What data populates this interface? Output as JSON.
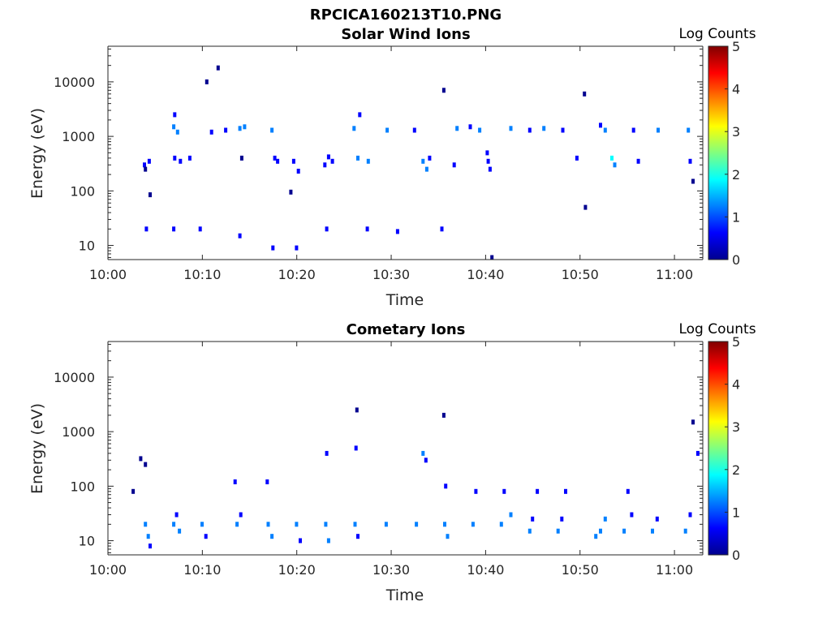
{
  "figure": {
    "title": "RPCICA160213T10.PNG"
  },
  "colormap": [
    "#00008f",
    "#0000ff",
    "#0080ff",
    "#00ffff",
    "#80ff80",
    "#ffff00",
    "#ff8000",
    "#ff0000",
    "#800000"
  ],
  "chart_data": [
    {
      "type": "heatmap",
      "title": "Solar Wind Ions",
      "xlabel": "Time",
      "ylabel": "Energy (eV)",
      "colorbar_label": "Log Counts",
      "colorbar_ticks": [
        "0",
        "1",
        "2",
        "3",
        "4",
        "5"
      ],
      "clim": [
        0,
        5
      ],
      "y_scale": "log",
      "ylim": [
        5.5,
        45000
      ],
      "xlim": [
        "10:00",
        "11:03"
      ],
      "x_ticks": [
        "10:00",
        "10:10",
        "10:20",
        "10:30",
        "10:40",
        "10:50",
        "11:00"
      ],
      "y_ticks": [
        "10",
        "100",
        "1000",
        "10000"
      ],
      "cells": [
        {
          "t": 3.7,
          "e": 300,
          "c": 0.4
        },
        {
          "t": 3.8,
          "e": 250,
          "c": 0.3
        },
        {
          "t": 4.2,
          "e": 350,
          "c": 0.5
        },
        {
          "t": 3.9,
          "e": 20,
          "c": 0.5
        },
        {
          "t": 4.3,
          "e": 85,
          "c": 0.2
        },
        {
          "t": 6.8,
          "e": 1500,
          "c": 1.1
        },
        {
          "t": 6.9,
          "e": 2500,
          "c": 0.8
        },
        {
          "t": 7.2,
          "e": 1200,
          "c": 1.0
        },
        {
          "t": 6.9,
          "e": 400,
          "c": 0.6
        },
        {
          "t": 7.5,
          "e": 350,
          "c": 0.5
        },
        {
          "t": 6.8,
          "e": 20,
          "c": 0.5
        },
        {
          "t": 8.5,
          "e": 400,
          "c": 0.4
        },
        {
          "t": 9.6,
          "e": 20,
          "c": 0.4
        },
        {
          "t": 10.3,
          "e": 10000,
          "c": 0.2
        },
        {
          "t": 11.5,
          "e": 18000,
          "c": 0.2
        },
        {
          "t": 10.8,
          "e": 1200,
          "c": 0.8
        },
        {
          "t": 12.3,
          "e": 1300,
          "c": 0.9
        },
        {
          "t": 13.8,
          "e": 1400,
          "c": 1.2
        },
        {
          "t": 14.3,
          "e": 1500,
          "c": 1.0
        },
        {
          "t": 13.8,
          "e": 15,
          "c": 0.4
        },
        {
          "t": 14.0,
          "e": 400,
          "c": 0.3
        },
        {
          "t": 17.2,
          "e": 1300,
          "c": 1.0
        },
        {
          "t": 17.5,
          "e": 400,
          "c": 0.5
        },
        {
          "t": 17.8,
          "e": 350,
          "c": 0.6
        },
        {
          "t": 17.3,
          "e": 9,
          "c": 0.4
        },
        {
          "t": 19.8,
          "e": 9,
          "c": 0.4
        },
        {
          "t": 19.2,
          "e": 95,
          "c": 0.2
        },
        {
          "t": 19.5,
          "e": 350,
          "c": 0.5
        },
        {
          "t": 20.0,
          "e": 230,
          "c": 0.4
        },
        {
          "t": 22.8,
          "e": 300,
          "c": 0.6
        },
        {
          "t": 23.2,
          "e": 420,
          "c": 0.8
        },
        {
          "t": 23.6,
          "e": 350,
          "c": 0.7
        },
        {
          "t": 23.0,
          "e": 20,
          "c": 0.4
        },
        {
          "t": 25.9,
          "e": 1400,
          "c": 1.1
        },
        {
          "t": 26.3,
          "e": 400,
          "c": 1.0
        },
        {
          "t": 26.5,
          "e": 2500,
          "c": 0.5
        },
        {
          "t": 27.4,
          "e": 350,
          "c": 1.0
        },
        {
          "t": 27.3,
          "e": 20,
          "c": 0.4
        },
        {
          "t": 29.4,
          "e": 1300,
          "c": 1.0
        },
        {
          "t": 30.5,
          "e": 18,
          "c": 0.4
        },
        {
          "t": 33.2,
          "e": 350,
          "c": 1.3
        },
        {
          "t": 33.6,
          "e": 250,
          "c": 1.0
        },
        {
          "t": 33.9,
          "e": 400,
          "c": 0.9
        },
        {
          "t": 32.3,
          "e": 1300,
          "c": 0.9
        },
        {
          "t": 35.2,
          "e": 20,
          "c": 0.4
        },
        {
          "t": 35.4,
          "e": 7000,
          "c": 0.2
        },
        {
          "t": 36.8,
          "e": 1400,
          "c": 1.0
        },
        {
          "t": 36.5,
          "e": 300,
          "c": 0.5
        },
        {
          "t": 38.2,
          "e": 1500,
          "c": 0.8
        },
        {
          "t": 39.2,
          "e": 1300,
          "c": 1.0
        },
        {
          "t": 40.0,
          "e": 500,
          "c": 0.8
        },
        {
          "t": 40.1,
          "e": 350,
          "c": 0.7
        },
        {
          "t": 40.3,
          "e": 250,
          "c": 0.4
        },
        {
          "t": 40.5,
          "e": 6,
          "c": 0.2
        },
        {
          "t": 42.5,
          "e": 1400,
          "c": 1.0
        },
        {
          "t": 44.5,
          "e": 1300,
          "c": 0.8
        },
        {
          "t": 46.0,
          "e": 1400,
          "c": 1.1
        },
        {
          "t": 48.0,
          "e": 1300,
          "c": 0.8
        },
        {
          "t": 49.5,
          "e": 400,
          "c": 0.6
        },
        {
          "t": 50.4,
          "e": 50,
          "c": 0.3
        },
        {
          "t": 50.3,
          "e": 6000,
          "c": 0.2
        },
        {
          "t": 52.0,
          "e": 1600,
          "c": 0.8
        },
        {
          "t": 52.5,
          "e": 1300,
          "c": 1.0
        },
        {
          "t": 53.2,
          "e": 400,
          "c": 1.6
        },
        {
          "t": 53.5,
          "e": 300,
          "c": 1.2
        },
        {
          "t": 55.5,
          "e": 1300,
          "c": 0.9
        },
        {
          "t": 56.0,
          "e": 350,
          "c": 0.9
        },
        {
          "t": 58.1,
          "e": 1300,
          "c": 1.0
        },
        {
          "t": 61.3,
          "e": 1300,
          "c": 1.0
        },
        {
          "t": 61.5,
          "e": 350,
          "c": 0.6
        },
        {
          "t": 61.8,
          "e": 150,
          "c": 0.3
        }
      ]
    },
    {
      "type": "heatmap",
      "title": "Cometary Ions",
      "xlabel": "Time",
      "ylabel": "Energy (eV)",
      "colorbar_label": "Log Counts",
      "colorbar_ticks": [
        "0",
        "1",
        "2",
        "3",
        "4",
        "5"
      ],
      "clim": [
        0,
        5
      ],
      "y_scale": "log",
      "ylim": [
        5.5,
        45000
      ],
      "xlim": [
        "10:00",
        "11:03"
      ],
      "x_ticks": [
        "10:00",
        "10:10",
        "10:20",
        "10:30",
        "10:40",
        "10:50",
        "11:00"
      ],
      "y_ticks": [
        "10",
        "100",
        "1000",
        "10000"
      ],
      "cells": [
        {
          "t": 2.5,
          "e": 80,
          "c": 0.3
        },
        {
          "t": 3.3,
          "e": 320,
          "c": 0.3
        },
        {
          "t": 3.8,
          "e": 250,
          "c": 0.3
        },
        {
          "t": 3.8,
          "e": 20,
          "c": 1.2
        },
        {
          "t": 4.1,
          "e": 12,
          "c": 1.0
        },
        {
          "t": 4.3,
          "e": 8,
          "c": 0.9
        },
        {
          "t": 6.8,
          "e": 20,
          "c": 1.0
        },
        {
          "t": 7.1,
          "e": 30,
          "c": 0.9
        },
        {
          "t": 7.4,
          "e": 15,
          "c": 1.0
        },
        {
          "t": 9.8,
          "e": 20,
          "c": 1.0
        },
        {
          "t": 10.2,
          "e": 12,
          "c": 0.9
        },
        {
          "t": 13.5,
          "e": 20,
          "c": 1.0
        },
        {
          "t": 13.9,
          "e": 30,
          "c": 0.8
        },
        {
          "t": 13.3,
          "e": 120,
          "c": 0.4
        },
        {
          "t": 16.8,
          "e": 20,
          "c": 1.0
        },
        {
          "t": 17.2,
          "e": 12,
          "c": 1.0
        },
        {
          "t": 16.7,
          "e": 120,
          "c": 0.4
        },
        {
          "t": 19.8,
          "e": 20,
          "c": 1.0
        },
        {
          "t": 20.2,
          "e": 10,
          "c": 0.9
        },
        {
          "t": 22.9,
          "e": 20,
          "c": 1.0
        },
        {
          "t": 23.2,
          "e": 10,
          "c": 1.0
        },
        {
          "t": 23.0,
          "e": 400,
          "c": 0.5
        },
        {
          "t": 26.0,
          "e": 20,
          "c": 1.0
        },
        {
          "t": 26.3,
          "e": 12,
          "c": 0.9
        },
        {
          "t": 26.1,
          "e": 500,
          "c": 0.6
        },
        {
          "t": 26.2,
          "e": 2500,
          "c": 0.3
        },
        {
          "t": 29.3,
          "e": 20,
          "c": 1.0
        },
        {
          "t": 32.5,
          "e": 20,
          "c": 1.0
        },
        {
          "t": 33.2,
          "e": 400,
          "c": 1.0
        },
        {
          "t": 33.5,
          "e": 300,
          "c": 0.8
        },
        {
          "t": 35.5,
          "e": 20,
          "c": 1.1
        },
        {
          "t": 35.8,
          "e": 12,
          "c": 1.0
        },
        {
          "t": 35.4,
          "e": 2000,
          "c": 0.3
        },
        {
          "t": 35.6,
          "e": 100,
          "c": 0.5
        },
        {
          "t": 38.5,
          "e": 20,
          "c": 1.0
        },
        {
          "t": 38.8,
          "e": 80,
          "c": 0.5
        },
        {
          "t": 41.5,
          "e": 20,
          "c": 1.0
        },
        {
          "t": 41.8,
          "e": 80,
          "c": 0.5
        },
        {
          "t": 42.5,
          "e": 30,
          "c": 1.2
        },
        {
          "t": 44.5,
          "e": 15,
          "c": 1.0
        },
        {
          "t": 44.8,
          "e": 25,
          "c": 0.9
        },
        {
          "t": 45.3,
          "e": 80,
          "c": 0.5
        },
        {
          "t": 47.5,
          "e": 15,
          "c": 1.0
        },
        {
          "t": 47.9,
          "e": 25,
          "c": 0.9
        },
        {
          "t": 48.3,
          "e": 80,
          "c": 0.5
        },
        {
          "t": 51.5,
          "e": 12,
          "c": 1.0
        },
        {
          "t": 52.0,
          "e": 15,
          "c": 1.0
        },
        {
          "t": 52.5,
          "e": 25,
          "c": 1.1
        },
        {
          "t": 54.5,
          "e": 15,
          "c": 1.0
        },
        {
          "t": 54.9,
          "e": 80,
          "c": 0.5
        },
        {
          "t": 55.3,
          "e": 30,
          "c": 0.9
        },
        {
          "t": 57.5,
          "e": 15,
          "c": 1.0
        },
        {
          "t": 58.0,
          "e": 25,
          "c": 0.8
        },
        {
          "t": 61.0,
          "e": 15,
          "c": 1.0
        },
        {
          "t": 61.5,
          "e": 30,
          "c": 0.9
        },
        {
          "t": 61.8,
          "e": 1500,
          "c": 0.3
        },
        {
          "t": 62.3,
          "e": 400,
          "c": 0.4
        }
      ]
    }
  ]
}
